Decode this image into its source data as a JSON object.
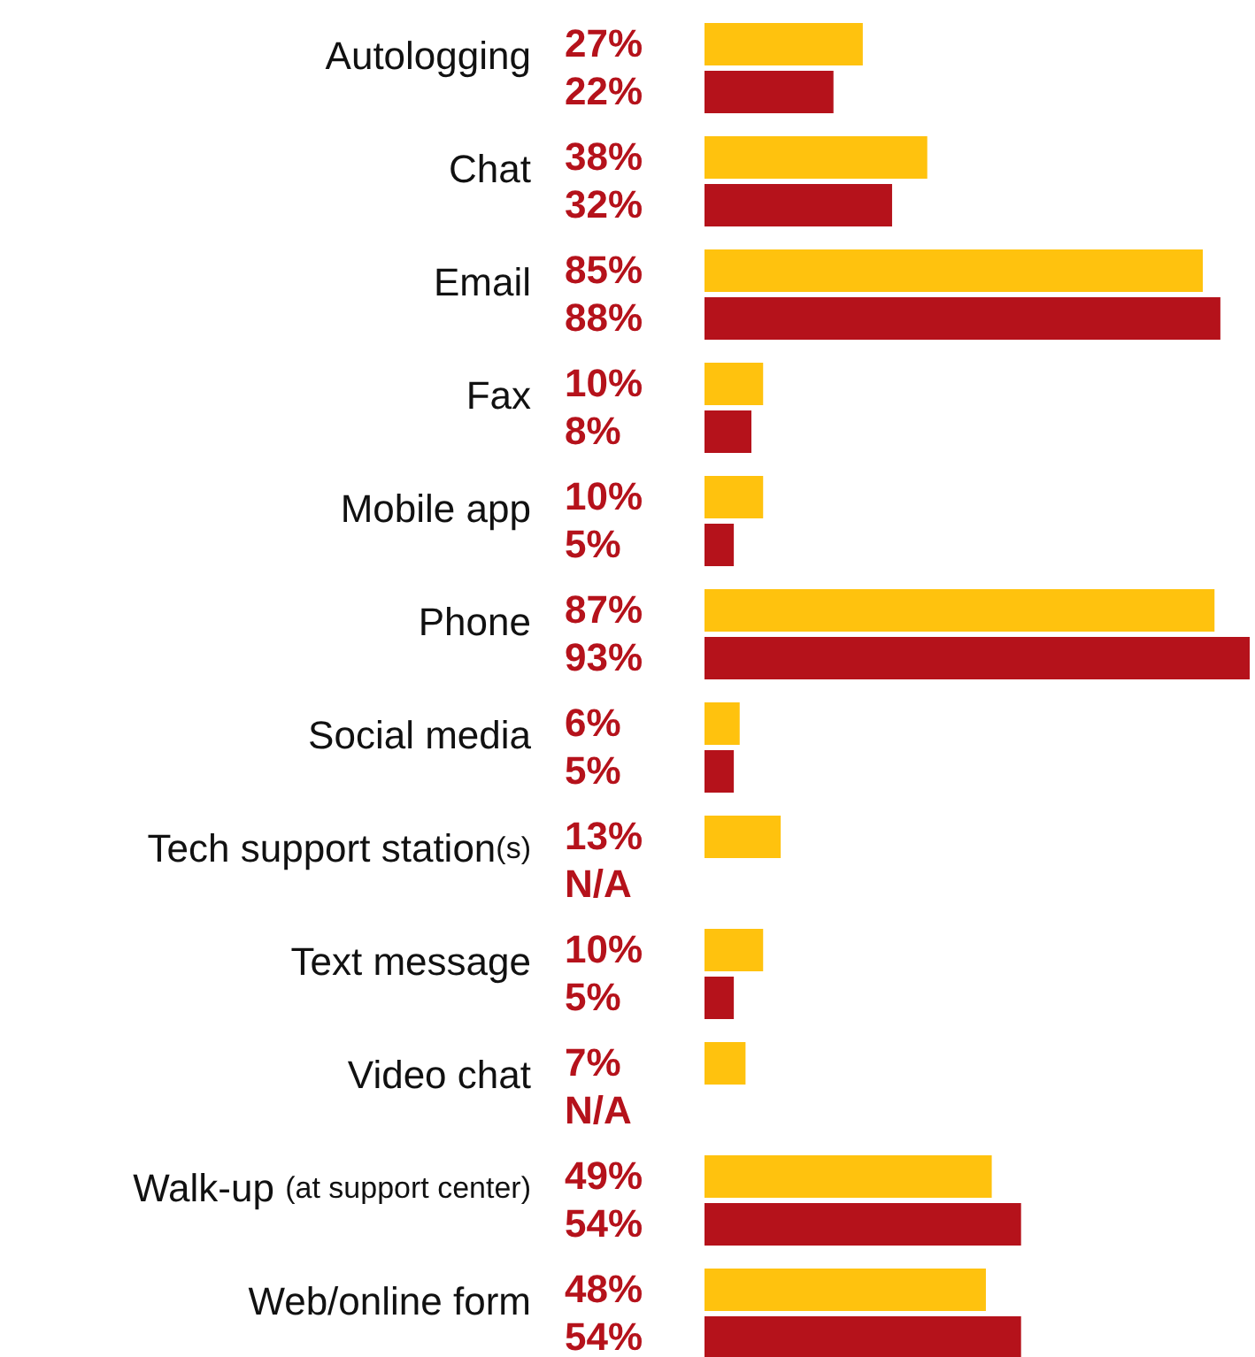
{
  "chart_data": {
    "type": "bar",
    "orientation": "horizontal",
    "categories": [
      "Autologging",
      "Chat",
      "Email",
      "Fax",
      "Mobile app",
      "Phone",
      "Social media",
      "Tech support station(s)",
      "Text message",
      "Video chat",
      "Walk-up (at support center)",
      "Web/online form"
    ],
    "series": [
      {
        "color": "#ffc20e",
        "values": [
          27,
          38,
          85,
          10,
          10,
          87,
          6,
          13,
          10,
          7,
          49,
          48
        ],
        "value_labels": [
          "27%",
          "38%",
          "85%",
          "10%",
          "10%",
          "87%",
          "6%",
          "13%",
          "10%",
          "7%",
          "49%",
          "48%"
        ]
      },
      {
        "color": "#b5121b",
        "values": [
          22,
          32,
          88,
          8,
          5,
          93,
          5,
          null,
          5,
          null,
          54,
          54
        ],
        "value_labels": [
          "22%",
          "32%",
          "88%",
          "8%",
          "5%",
          "93%",
          "5%",
          "N/A",
          "5%",
          "N/A",
          "54%",
          "54%"
        ]
      }
    ],
    "grid": false,
    "legend": false
  }
}
